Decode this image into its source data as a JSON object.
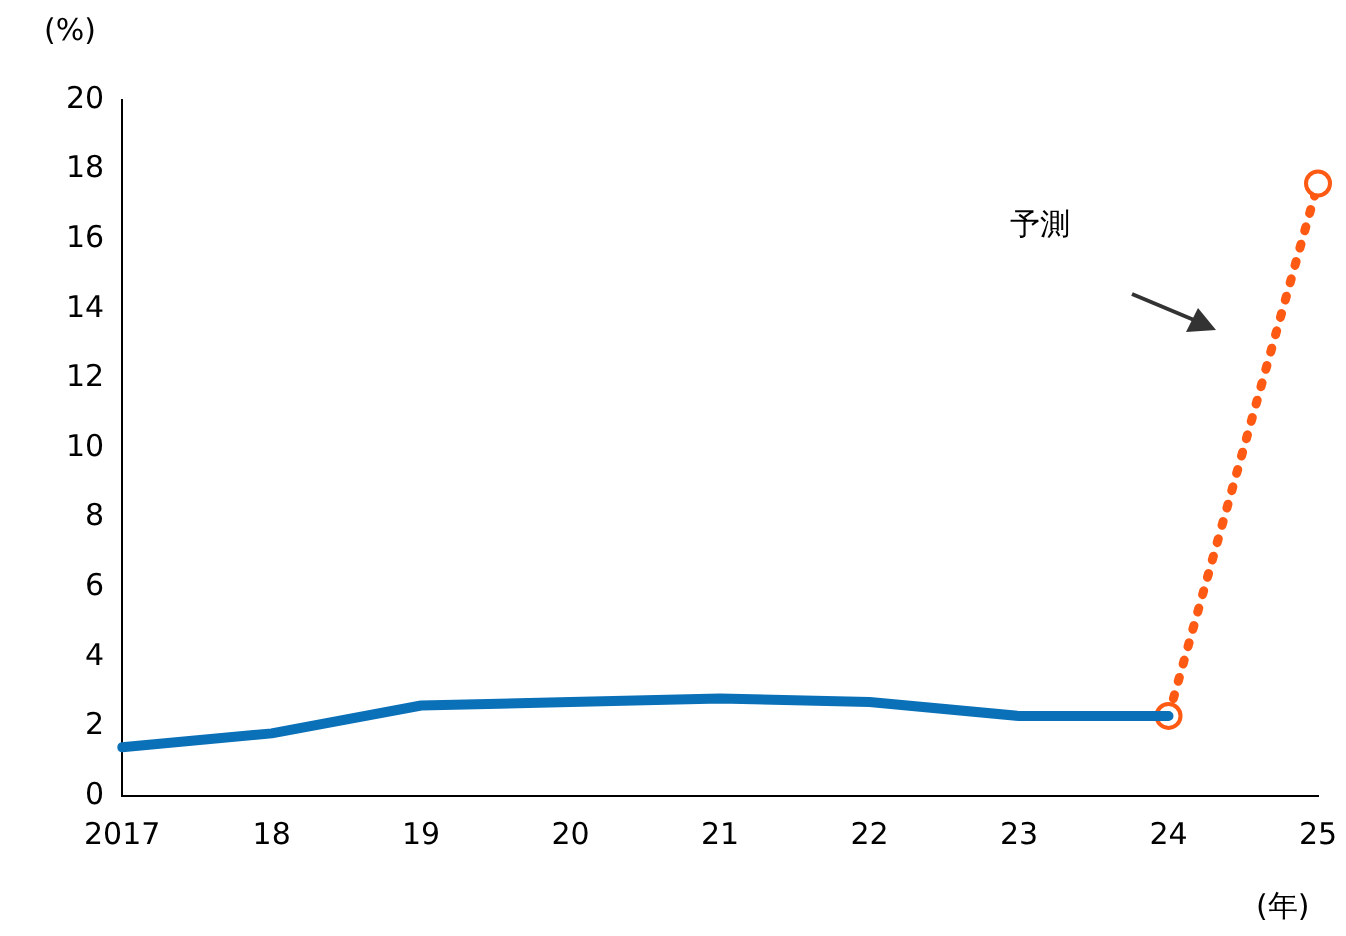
{
  "chart_data": {
    "type": "line",
    "xlabel": "(年)",
    "ylabel": "(%)",
    "categories": [
      "2017",
      "18",
      "19",
      "20",
      "21",
      "22",
      "23",
      "24",
      "25"
    ],
    "series": [
      {
        "color": "#0a70b8",
        "values": [
          1.4,
          1.8,
          2.6,
          2.7,
          2.8,
          2.7,
          2.3,
          2.3,
          null
        ],
        "marker": "none",
        "line_style": "solid"
      },
      {
        "color": "#ff5a14",
        "values": [
          null,
          null,
          null,
          null,
          null,
          null,
          null,
          2.3,
          17.6
        ],
        "marker": "circle",
        "line_style": "dotted"
      }
    ],
    "ylim": [
      0,
      20
    ],
    "yticks": [
      0,
      2,
      4,
      6,
      8,
      10,
      12,
      14,
      16,
      18,
      20
    ],
    "grid": false,
    "legend": false,
    "annotations": [
      "予測"
    ]
  }
}
